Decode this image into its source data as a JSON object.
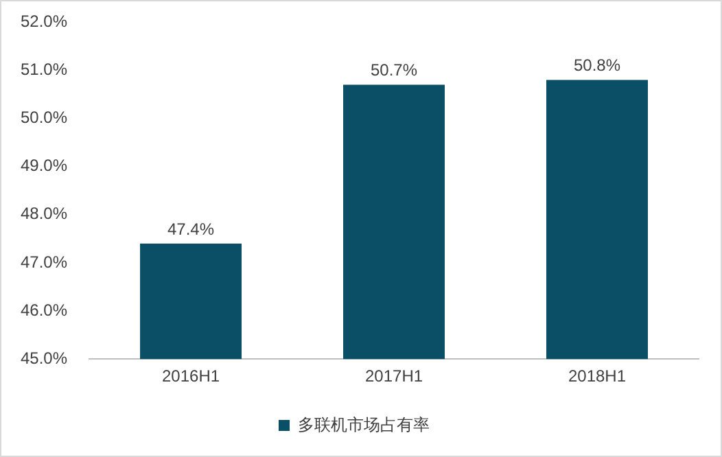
{
  "chart_data": {
    "type": "bar",
    "categories": [
      "2016H1",
      "2017H1",
      "2018H1"
    ],
    "series": [
      {
        "name": "多联机市场占有率",
        "color": "#0b4f66",
        "values": [
          47.4,
          50.7,
          50.8
        ]
      }
    ],
    "ylim": [
      45,
      52
    ],
    "yticks": [
      {
        "value": 45,
        "label": "45.0%"
      },
      {
        "value": 46,
        "label": "46.0%"
      },
      {
        "value": 47,
        "label": "47.0%"
      },
      {
        "value": 48,
        "label": "48.0%"
      },
      {
        "value": 49,
        "label": "49.0%"
      },
      {
        "value": 50,
        "label": "50.0%"
      },
      {
        "value": 51,
        "label": "51.0%"
      },
      {
        "value": 52,
        "label": "52.0%"
      }
    ],
    "value_labels": [
      "47.4%",
      "50.7%",
      "50.8%"
    ],
    "grid": false,
    "legend": "bottom"
  }
}
